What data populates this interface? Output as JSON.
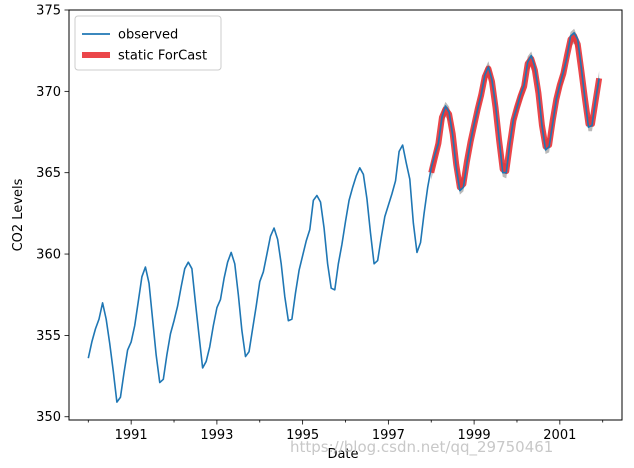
{
  "chart_data": {
    "type": "line",
    "title": "",
    "xlabel": "Date",
    "ylabel": "CO2 Levels",
    "xlim": [
      1989.55,
      2002.45
    ],
    "ylim": [
      349.8,
      375.0
    ],
    "xticks_major": [
      1991,
      1993,
      1995,
      1997,
      1999,
      2001
    ],
    "xticks_minor": [
      1990,
      1992,
      1994,
      1996,
      1998,
      2000,
      2002
    ],
    "yticks": [
      350,
      355,
      360,
      365,
      370,
      375
    ],
    "grid": false,
    "legend_placement": "upper-left",
    "colors": {
      "observed": "#1f77b4",
      "forecast": "#e8262a",
      "confidence_band": "#808080"
    },
    "series": [
      {
        "name": "observed",
        "x": [
          1990.0,
          1990.083,
          1990.167,
          1990.25,
          1990.333,
          1990.417,
          1990.5,
          1990.583,
          1990.667,
          1990.75,
          1990.833,
          1990.917,
          1991.0,
          1991.083,
          1991.167,
          1991.25,
          1991.333,
          1991.417,
          1991.5,
          1991.583,
          1991.667,
          1991.75,
          1991.833,
          1991.917,
          1992.0,
          1992.083,
          1992.167,
          1992.25,
          1992.333,
          1992.417,
          1992.5,
          1992.583,
          1992.667,
          1992.75,
          1992.833,
          1992.917,
          1993.0,
          1993.083,
          1993.167,
          1993.25,
          1993.333,
          1993.417,
          1993.5,
          1993.583,
          1993.667,
          1993.75,
          1993.833,
          1993.917,
          1994.0,
          1994.083,
          1994.167,
          1994.25,
          1994.333,
          1994.417,
          1994.5,
          1994.583,
          1994.667,
          1994.75,
          1994.833,
          1994.917,
          1995.0,
          1995.083,
          1995.167,
          1995.25,
          1995.333,
          1995.417,
          1995.5,
          1995.583,
          1995.667,
          1995.75,
          1995.833,
          1995.917,
          1996.0,
          1996.083,
          1996.167,
          1996.25,
          1996.333,
          1996.417,
          1996.5,
          1996.583,
          1996.667,
          1996.75,
          1996.833,
          1996.917,
          1997.0,
          1997.083,
          1997.167,
          1997.25,
          1997.333,
          1997.417,
          1997.5,
          1997.583,
          1997.667,
          1997.75,
          1997.833,
          1997.917,
          1998.0,
          1998.083,
          1998.167,
          1998.25,
          1998.333,
          1998.417,
          1998.5,
          1998.583,
          1998.667,
          1998.75,
          1998.833,
          1998.917,
          1999.0,
          1999.083,
          1999.167,
          1999.25,
          1999.333,
          1999.417,
          1999.5,
          1999.583,
          1999.667,
          1999.75,
          1999.833,
          1999.917,
          2000.0,
          2000.083,
          2000.167,
          2000.25,
          2000.333,
          2000.417,
          2000.5,
          2000.583,
          2000.667,
          2000.75,
          2000.833,
          2000.917,
          2001.0,
          2001.083,
          2001.167,
          2001.25,
          2001.333,
          2001.417,
          2001.5,
          2001.583,
          2001.667,
          2001.75,
          2001.833,
          2001.917
        ],
        "values": [
          353.6,
          354.6,
          355.4,
          356.0,
          357.0,
          356.0,
          354.5,
          352.8,
          350.9,
          351.2,
          352.7,
          354.1,
          354.6,
          355.6,
          357.1,
          358.6,
          359.2,
          358.2,
          356.0,
          353.8,
          352.1,
          352.3,
          353.8,
          355.1,
          355.9,
          356.8,
          358.0,
          359.1,
          359.5,
          359.1,
          357.0,
          355.0,
          353.0,
          353.4,
          354.3,
          355.6,
          356.7,
          357.2,
          358.5,
          359.5,
          360.1,
          359.4,
          357.5,
          355.3,
          353.7,
          354.0,
          355.4,
          356.8,
          358.3,
          358.9,
          360.0,
          361.1,
          361.6,
          360.9,
          359.4,
          357.4,
          355.9,
          356.0,
          357.6,
          359.0,
          359.9,
          360.8,
          361.5,
          363.3,
          363.6,
          363.2,
          361.6,
          359.4,
          357.9,
          357.8,
          359.4,
          360.6,
          362.0,
          363.3,
          364.1,
          364.8,
          365.3,
          364.9,
          363.4,
          361.3,
          359.4,
          359.6,
          361.0,
          362.3,
          363.0,
          363.7,
          364.5,
          366.3,
          366.7,
          365.6,
          364.6,
          361.9,
          360.1,
          360.7,
          362.5,
          364.1,
          365.3,
          366.1,
          366.8,
          368.4,
          369.1,
          368.7,
          367.3,
          365.3,
          363.9,
          364.1,
          365.6,
          366.9,
          368.0,
          368.9,
          369.8,
          371.0,
          371.5,
          370.7,
          369.2,
          367.1,
          365.0,
          365.0,
          366.8,
          368.3,
          369.0,
          369.8,
          370.4,
          371.8,
          372.2,
          371.5,
          370.1,
          367.9,
          366.4,
          366.6,
          368.0,
          369.5,
          370.4,
          371.2,
          372.1,
          373.4,
          373.6,
          373.2,
          371.5,
          369.6,
          367.8,
          367.9,
          369.5,
          370.8
        ]
      },
      {
        "name": "static ForCast",
        "x": [
          1998.0,
          1998.083,
          1998.167,
          1998.25,
          1998.333,
          1998.417,
          1998.5,
          1998.583,
          1998.667,
          1998.75,
          1998.833,
          1998.917,
          1999.0,
          1999.083,
          1999.167,
          1999.25,
          1999.333,
          1999.417,
          1999.5,
          1999.583,
          1999.667,
          1999.75,
          1999.833,
          1999.917,
          2000.0,
          2000.083,
          2000.167,
          2000.25,
          2000.333,
          2000.417,
          2000.5,
          2000.583,
          2000.667,
          2000.75,
          2000.833,
          2000.917,
          2001.0,
          2001.083,
          2001.167,
          2001.25,
          2001.333,
          2001.417,
          2001.5,
          2001.583,
          2001.667,
          2001.75,
          2001.833,
          2001.917
        ],
        "values": [
          365.0,
          365.9,
          366.8,
          368.4,
          368.9,
          368.6,
          367.4,
          365.5,
          364.1,
          364.3,
          365.7,
          366.9,
          367.9,
          368.9,
          369.8,
          370.9,
          371.4,
          370.6,
          369.0,
          367.0,
          365.2,
          365.1,
          366.7,
          368.2,
          369.0,
          369.7,
          370.3,
          371.7,
          372.0,
          371.3,
          369.9,
          367.9,
          366.6,
          366.7,
          368.2,
          369.5,
          370.4,
          371.1,
          372.2,
          373.2,
          373.4,
          372.9,
          371.3,
          369.6,
          368.0,
          368.0,
          369.4,
          370.8
        ],
        "band": 0.45
      }
    ]
  },
  "watermark": "https://blog.csdn.net/qq_29750461"
}
